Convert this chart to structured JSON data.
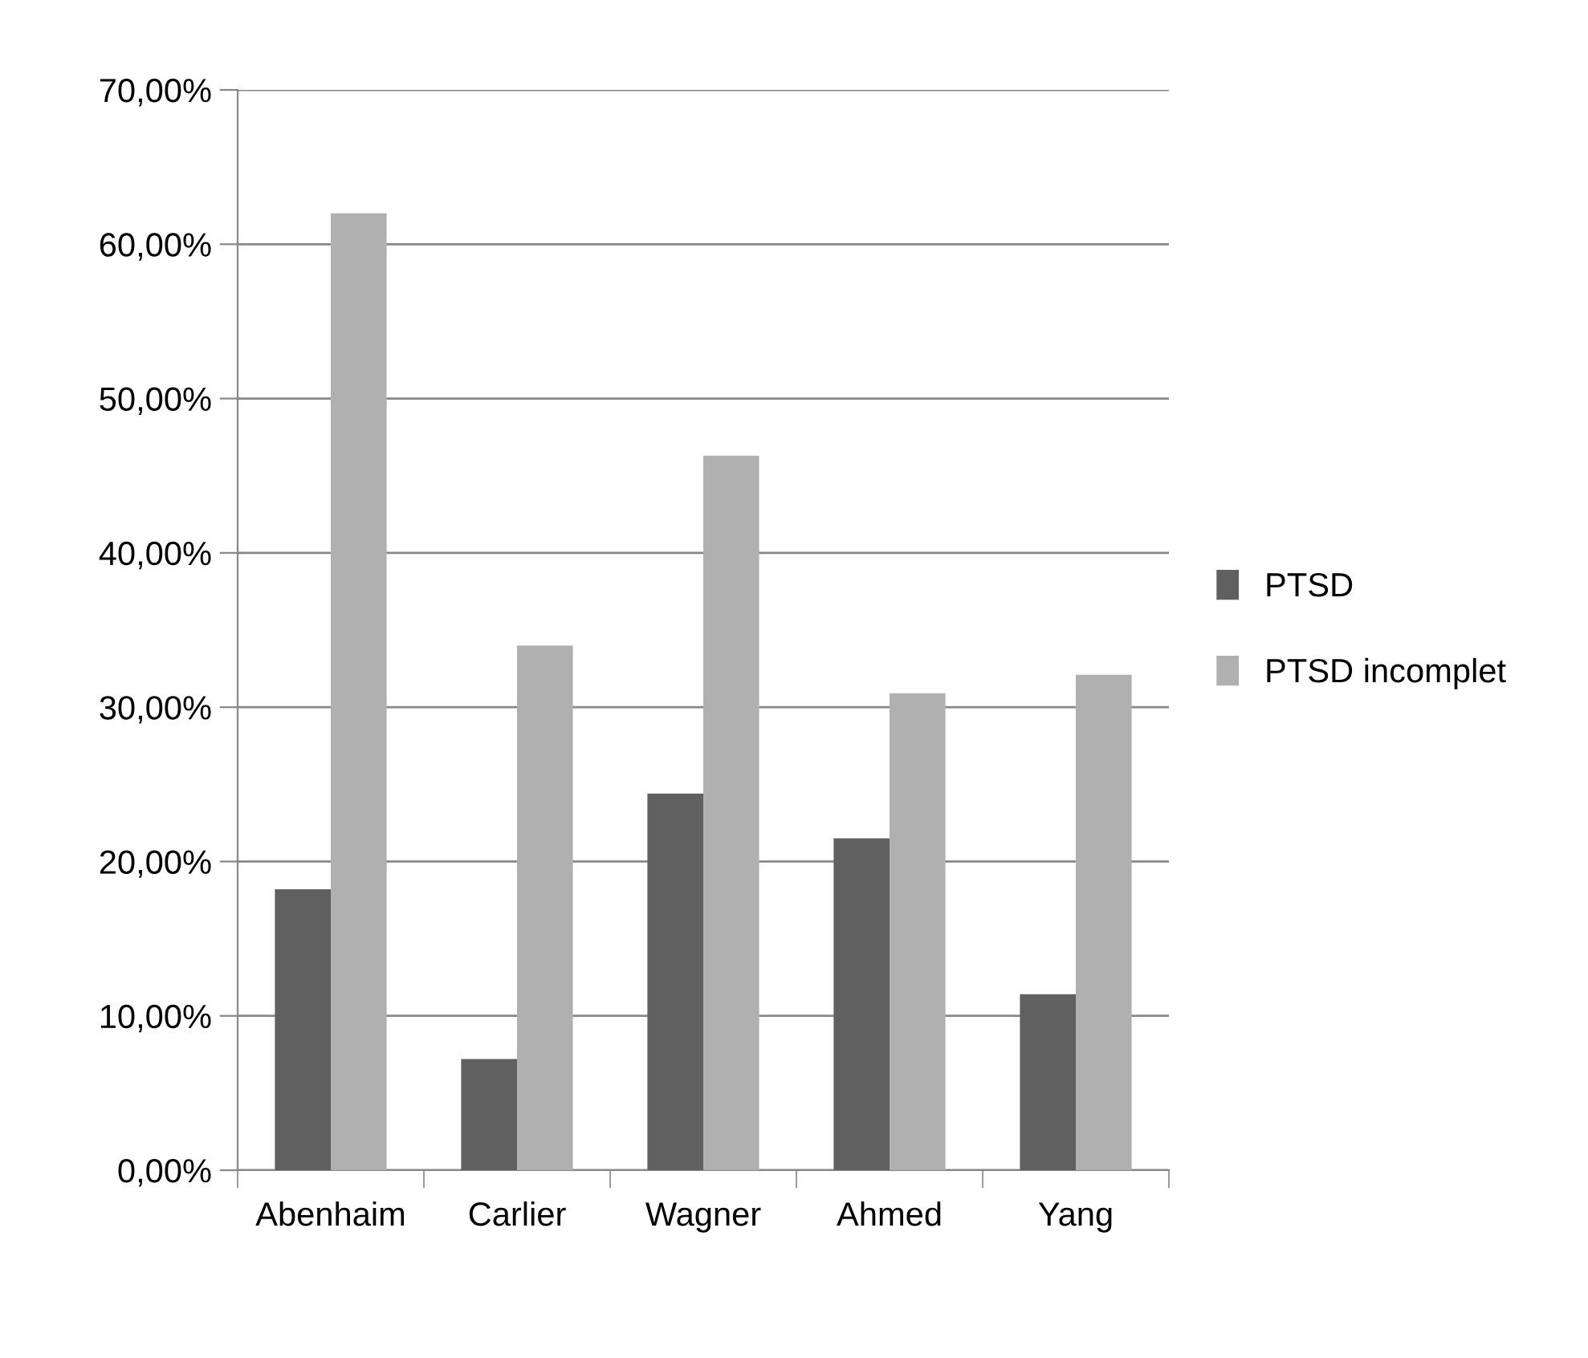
{
  "chart_data": {
    "type": "bar",
    "categories": [
      "Abenhaim",
      "Carlier",
      "Wagner",
      "Ahmed",
      "Yang"
    ],
    "series": [
      {
        "name": "PTSD",
        "color": "#606060",
        "values": [
          18.2,
          7.2,
          24.4,
          21.5,
          11.4
        ]
      },
      {
        "name": "PTSD incomplet",
        "color": "#b0b0b0",
        "values": [
          62.0,
          34.0,
          46.3,
          30.9,
          32.1
        ]
      }
    ],
    "ylim": [
      0,
      70
    ],
    "yticks": [
      {
        "value": 0,
        "label": "0,00%"
      },
      {
        "value": 10,
        "label": "10,00%"
      },
      {
        "value": 20,
        "label": "20,00%"
      },
      {
        "value": 30,
        "label": "30,00%"
      },
      {
        "value": 40,
        "label": "40,00%"
      },
      {
        "value": 50,
        "label": "50,00%"
      },
      {
        "value": 60,
        "label": "60,00%"
      },
      {
        "value": 70,
        "label": "70,00%"
      }
    ],
    "grid": "y",
    "legend": "right"
  }
}
